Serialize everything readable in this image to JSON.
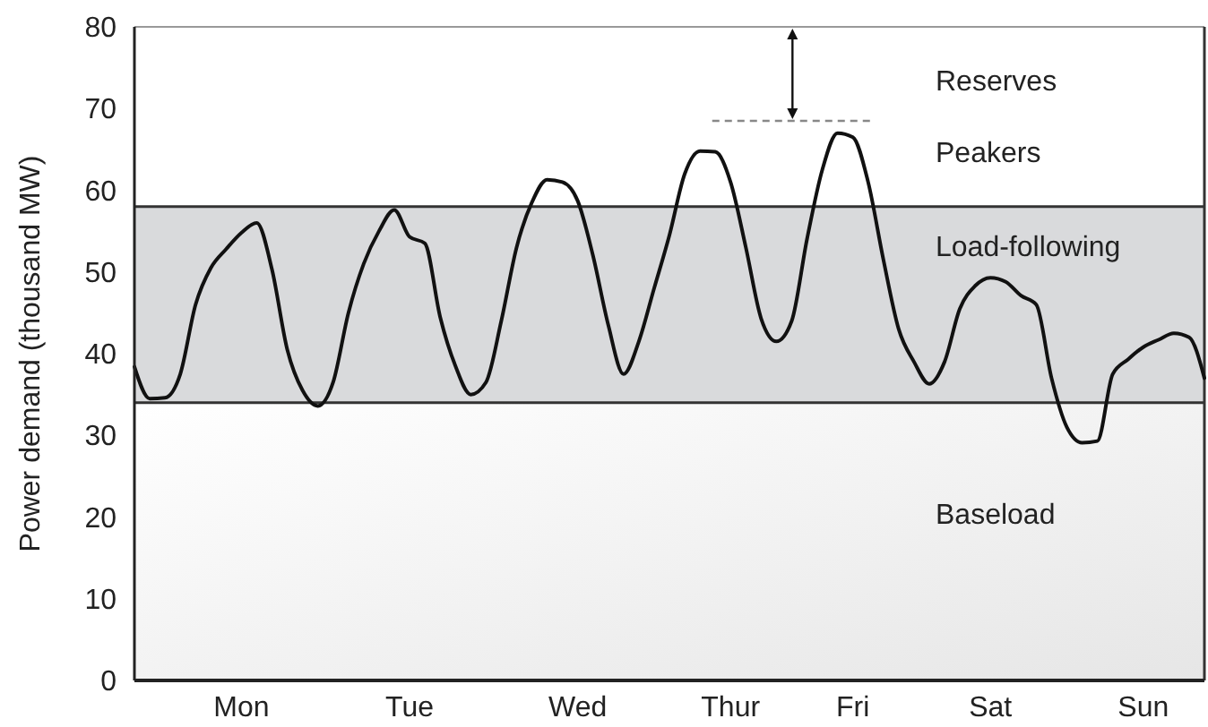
{
  "chart_data": {
    "type": "line",
    "ylabel": "Power demand (thousand MW)",
    "categories": [
      null,
      null,
      null,
      null,
      null,
      null,
      null,
      "Mon",
      null,
      null,
      null,
      null,
      null,
      null,
      null,
      null,
      null,
      null,
      "Tue",
      null,
      null,
      null,
      null,
      null,
      null,
      null,
      null,
      null,
      null,
      "Wed",
      null,
      null,
      null,
      null,
      null,
      null,
      null,
      null,
      null,
      "Thur",
      null,
      null,
      null,
      null,
      null,
      null,
      null,
      "Fri",
      null,
      null,
      null,
      null,
      null,
      null,
      null,
      null,
      "Sat",
      null,
      null,
      null,
      null,
      null,
      null,
      null,
      null,
      null,
      "Sun",
      null,
      null,
      null,
      null
    ],
    "ylim": [
      0,
      80
    ],
    "yticks": [
      0,
      10,
      20,
      30,
      40,
      50,
      60,
      70,
      80
    ],
    "series": [
      {
        "color": "#111111",
        "values": [
          38.4,
          34.5,
          34.6,
          37.5,
          46,
          50.5,
          52.8,
          54.8,
          56,
          50.3,
          40.5,
          35.5,
          33.6,
          36.5,
          45,
          51,
          55,
          57.6,
          54.3,
          53.5,
          44.5,
          38.5,
          35,
          36.5,
          44,
          53,
          58.5,
          61.3,
          61,
          58.7,
          52,
          43.5,
          37.5,
          41.5,
          48,
          54.5,
          62,
          64.8,
          64.7,
          61,
          53,
          44.3,
          41.5,
          44,
          54,
          62.5,
          67,
          66.5,
          61,
          51.5,
          43,
          39,
          36.3,
          39,
          45.5,
          48.3,
          49.3,
          48.8,
          47.1,
          46,
          37,
          31,
          29.1,
          29.3,
          37.5,
          39.3,
          40.8,
          41.7,
          42.5,
          42,
          37
        ]
      }
    ],
    "bands": [
      {
        "axis": "y",
        "from": 0,
        "to": 34,
        "label": "Baseload",
        "color": "#e6e6e6"
      },
      {
        "axis": "y",
        "from": 34,
        "to": 58,
        "label": "Load-following",
        "color": "#d9dadc"
      }
    ],
    "ref_lines": [
      {
        "axis": "y",
        "value": 68.5,
        "line_style": "dashed",
        "color": "#888888"
      },
      {
        "axis": "y",
        "value": 34,
        "line_style": "solid",
        "color": "#333333"
      },
      {
        "axis": "y",
        "value": 58,
        "line_style": "solid",
        "color": "#333333"
      }
    ],
    "annotations": [
      "Reserves",
      "Peakers"
    ],
    "grid": false,
    "marker": "none",
    "line_style": "solid"
  }
}
